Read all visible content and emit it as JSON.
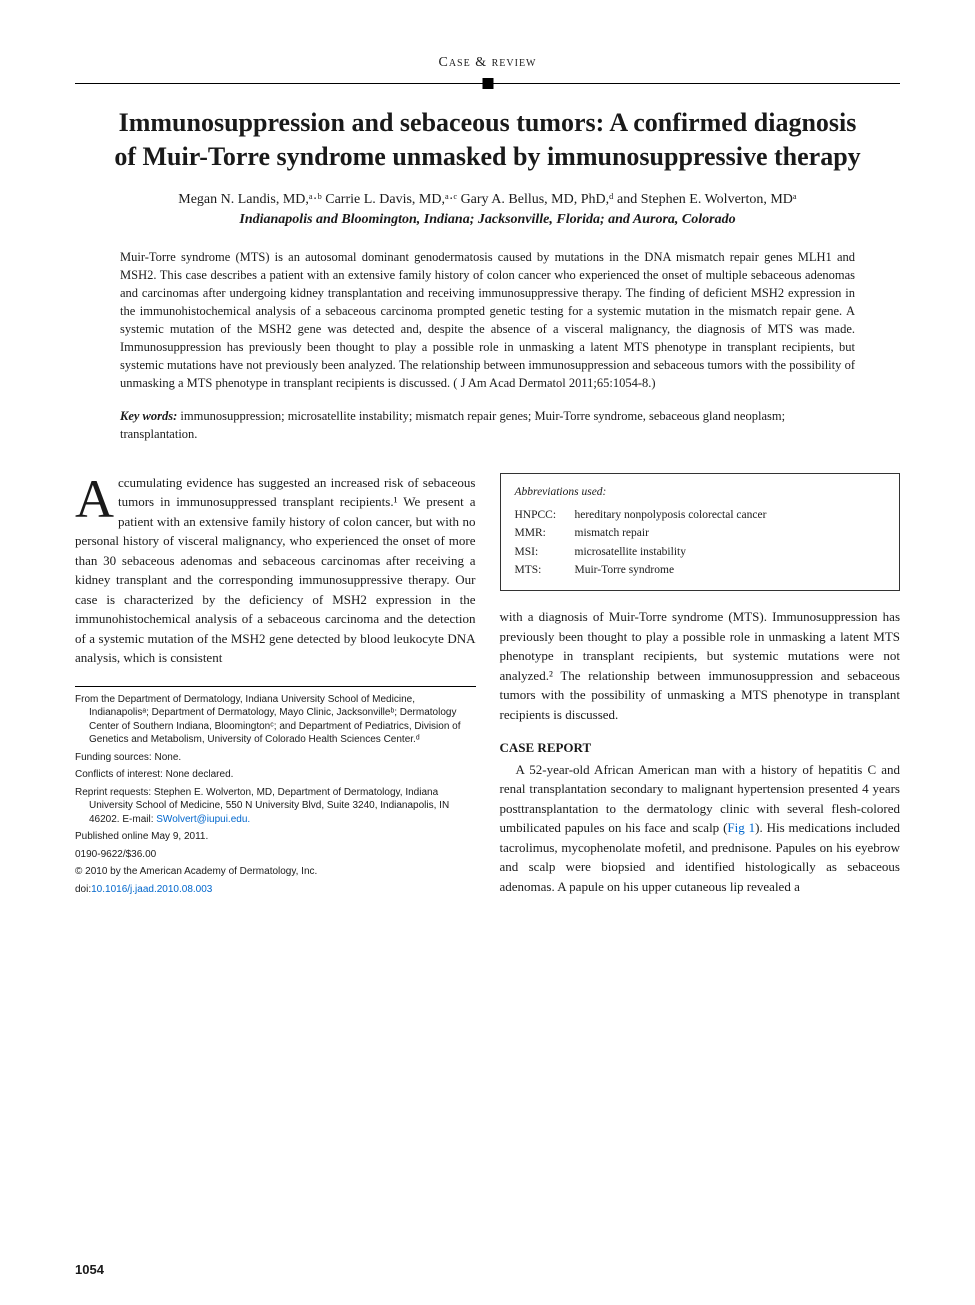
{
  "sectionHeader": "Case & review",
  "title": "Immunosuppression and sebaceous tumors: A confirmed diagnosis of Muir-Torre syndrome unmasked by immunosuppressive therapy",
  "authors": "Megan N. Landis, MD,ᵃ·ᵇ Carrie L. Davis, MD,ᵃ·ᶜ Gary A. Bellus, MD, PhD,ᵈ and Stephen E. Wolverton, MDᵃ",
  "affiliations": "Indianapolis and Bloomington, Indiana; Jacksonville, Florida; and Aurora, Colorado",
  "abstract": "Muir-Torre syndrome (MTS) is an autosomal dominant genodermatosis caused by mutations in the DNA mismatch repair genes MLH1 and MSH2. This case describes a patient with an extensive family history of colon cancer who experienced the onset of multiple sebaceous adenomas and carcinomas after undergoing kidney transplantation and receiving immunosuppressive therapy. The finding of deficient MSH2 expression in the immunohistochemical analysis of a sebaceous carcinoma prompted genetic testing for a systemic mutation in the mismatch repair gene. A systemic mutation of the MSH2 gene was detected and, despite the absence of a visceral malignancy, the diagnosis of MTS was made. Immunosuppression has previously been thought to play a possible role in unmasking a latent MTS phenotype in transplant recipients, but systemic mutations have not previously been analyzed. The relationship between immunosuppression and sebaceous tumors with the possibility of unmasking a MTS phenotype in transplant recipients is discussed. ( J Am Acad Dermatol 2011;65:1054-8.)",
  "keywordsLabel": "Key words:",
  "keywords": "immunosuppression; microsatellite instability; mismatch repair genes; Muir-Torre syndrome, sebaceous gland neoplasm; transplantation.",
  "abbrevTitle": "Abbreviations used:",
  "abbreviations": [
    {
      "key": "HNPCC:",
      "val": "hereditary nonpolyposis colorectal cancer"
    },
    {
      "key": "MMR:",
      "val": "mismatch repair"
    },
    {
      "key": "MSI:",
      "val": "microsatellite instability"
    },
    {
      "key": "MTS:",
      "val": "Muir-Torre syndrome"
    }
  ],
  "col1": {
    "dropcap": "A",
    "p1": "ccumulating evidence has suggested an increased risk of sebaceous tumors in immunosuppressed transplant recipients.¹ We present a patient with an extensive family history of colon cancer, but with no personal history of visceral malignancy, who experienced the onset of more than 30 sebaceous adenomas and sebaceous carcinomas after receiving a kidney transplant and the corresponding immunosuppressive therapy. Our case is characterized by the deficiency of MSH2 expression in the immunohistochemical analysis of a sebaceous carcinoma and the detection of a systemic mutation of the MSH2 gene detected by blood leukocyte DNA analysis, which is consistent"
  },
  "col2": {
    "p1": "with a diagnosis of Muir-Torre syndrome (MTS). Immunosuppression has previously been thought to play a possible role in unmasking a latent MTS phenotype in transplant recipients, but systemic mutations were not analyzed.² The relationship between immunosuppression and sebaceous tumors with the possibility of unmasking a MTS phenotype in transplant recipients is discussed.",
    "h2": "CASE REPORT",
    "p2a": "A 52-year-old African American man with a history of hepatitis C and renal transplantation secondary to malignant hypertension presented 4 years posttransplantation to the dermatology clinic with several flesh-colored umbilicated papules on his face and scalp (",
    "figref": "Fig 1",
    "p2b": "). His medications included tacrolimus, mycophenolate mofetil, and prednisone. Papules on his eyebrow and scalp were biopsied and identified histologically as sebaceous adenomas. A papule on his upper cutaneous lip revealed a"
  },
  "footnotes": {
    "from": "From the Department of Dermatology, Indiana University School of Medicine, Indianapolisᵃ; Department of Dermatology, Mayo Clinic, Jacksonvilleᵇ; Dermatology Center of Southern Indiana, Bloomingtonᶜ; and Department of Pediatrics, Division of Genetics and Metabolism, University of Colorado Health Sciences Center.ᵈ",
    "funding": "Funding sources: None.",
    "conflicts": "Conflicts of interest: None declared.",
    "reprint": "Reprint requests: Stephen E. Wolverton, MD, Department of Dermatology, Indiana University School of Medicine, 550 N University Blvd, Suite 3240, Indianapolis, IN 46202. E-mail: ",
    "email": "SWolvert@iupui.edu.",
    "published": "Published online May 9, 2011.",
    "issn": "0190-9622/$36.00",
    "copyright": "© 2010 by the American Academy of Dermatology, Inc.",
    "doiLabel": "doi:",
    "doi": "10.1016/j.jaad.2010.08.003"
  },
  "pageNum": "1054",
  "colors": {
    "text": "#1a1a1a",
    "link": "#0066cc",
    "rule": "#000000",
    "boxBorder": "#333333",
    "background": "#ffffff"
  },
  "fonts": {
    "body": "Georgia/serif",
    "footnotes": "Arial/sans-serif",
    "titleSize": 26,
    "bodySize": 13,
    "abstractSize": 12.5,
    "footnoteSize": 10
  }
}
